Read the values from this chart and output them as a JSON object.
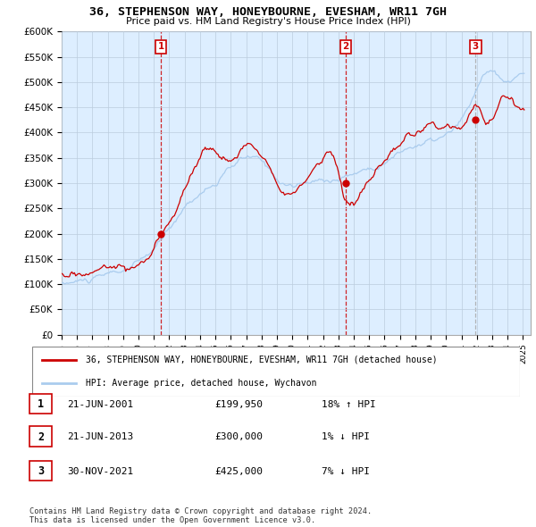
{
  "title": "36, STEPHENSON WAY, HONEYBOURNE, EVESHAM, WR11 7GH",
  "subtitle": "Price paid vs. HM Land Registry's House Price Index (HPI)",
  "ylim": [
    0,
    600000
  ],
  "yticks": [
    0,
    50000,
    100000,
    150000,
    200000,
    250000,
    300000,
    350000,
    400000,
    450000,
    500000,
    550000,
    600000
  ],
  "ytick_labels": [
    "£0",
    "£50K",
    "£100K",
    "£150K",
    "£200K",
    "£250K",
    "£300K",
    "£350K",
    "£400K",
    "£450K",
    "£500K",
    "£550K",
    "£600K"
  ],
  "sale_year_floats": [
    2001.46,
    2013.46,
    2021.92
  ],
  "sale_prices": [
    199950,
    300000,
    425000
  ],
  "sale_labels": [
    "1",
    "2",
    "3"
  ],
  "dashed_line_colors": [
    "#cc0000",
    "#cc0000",
    "#aaaaaa"
  ],
  "legend_entries": [
    "36, STEPHENSON WAY, HONEYBOURNE, EVESHAM, WR11 7GH (detached house)",
    "HPI: Average price, detached house, Wychavon"
  ],
  "table_rows": [
    {
      "num": "1",
      "date": "21-JUN-2001",
      "price": "£199,950",
      "hpi": "18% ↑ HPI"
    },
    {
      "num": "2",
      "date": "21-JUN-2013",
      "price": "£300,000",
      "hpi": "1% ↓ HPI"
    },
    {
      "num": "3",
      "date": "30-NOV-2021",
      "price": "£425,000",
      "hpi": "7% ↓ HPI"
    }
  ],
  "footer": "Contains HM Land Registry data © Crown copyright and database right 2024.\nThis data is licensed under the Open Government Licence v3.0.",
  "hpi_color": "#aaccee",
  "price_color": "#cc0000",
  "chart_bg": "#ddeeff",
  "background_color": "#ffffff",
  "grid_color": "#bbccdd"
}
